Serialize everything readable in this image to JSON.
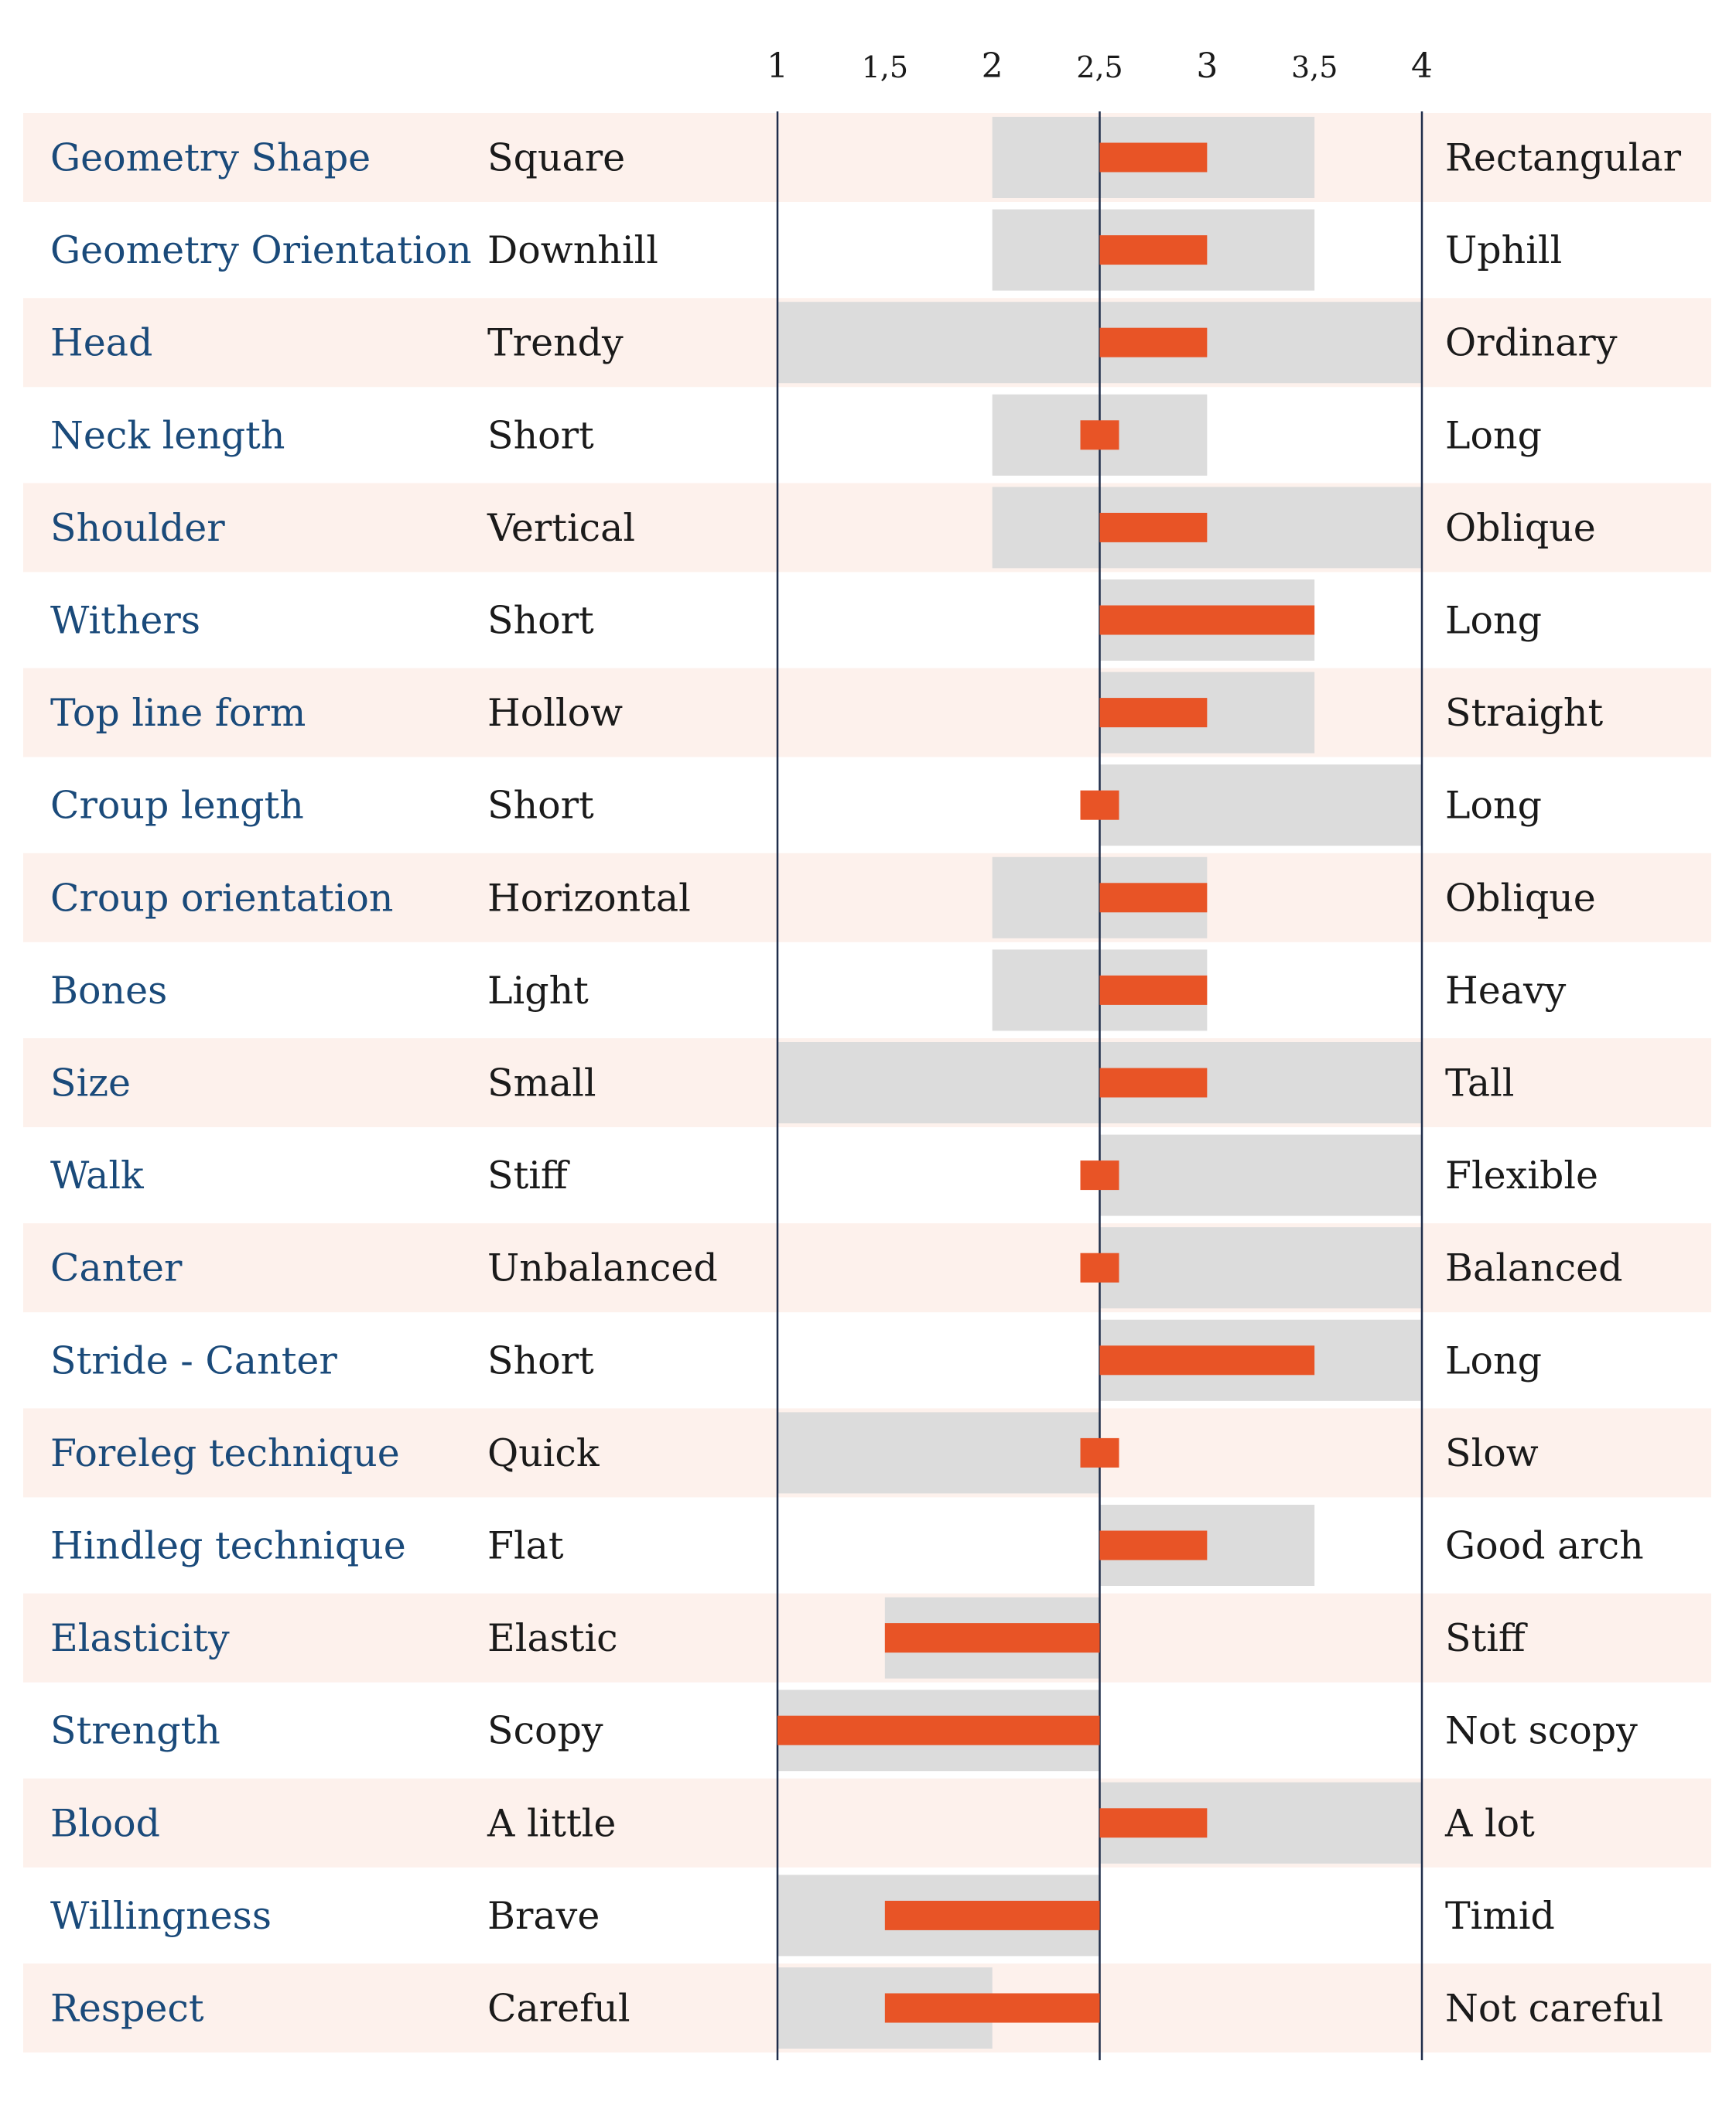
{
  "colors": {
    "row_band": "#fdf1ec",
    "range_bar": "#dcdcdc",
    "value_bar": "#e85426",
    "trait_text": "#1a4a7a",
    "pole_text": "#1a1a1a",
    "axis_line": "#1f2d4a"
  },
  "chart_data": {
    "type": "bar",
    "orientation": "horizontal",
    "baseline": 2.5,
    "xlim": [
      1,
      4
    ],
    "x_ticks": [
      1,
      1.5,
      2,
      2.5,
      3,
      3.5,
      4
    ],
    "x_tick_labels": [
      "1",
      "1,5",
      "2",
      "2,5",
      "3",
      "3,5",
      "4"
    ],
    "rows": [
      {
        "trait": "Geometry Shape",
        "low": "Square",
        "high": "Rectangular",
        "value": 3,
        "range": [
          2,
          3.5
        ]
      },
      {
        "trait": "Geometry Orientation",
        "low": "Downhill",
        "high": "Uphill",
        "value": 3,
        "range": [
          2,
          3.5
        ]
      },
      {
        "trait": "Head",
        "low": "Trendy",
        "high": "Ordinary",
        "value": 3,
        "range": [
          1,
          4
        ]
      },
      {
        "trait": "Neck length",
        "low": "Short",
        "high": "Long",
        "value": 2.5,
        "range": [
          2,
          3
        ]
      },
      {
        "trait": "Shoulder",
        "low": "Vertical",
        "high": "Oblique",
        "value": 3,
        "range": [
          2,
          4
        ]
      },
      {
        "trait": "Withers",
        "low": "Short",
        "high": "Long",
        "value": 3.5,
        "range": [
          2.5,
          3.5
        ]
      },
      {
        "trait": "Top line form",
        "low": "Hollow",
        "high": "Straight",
        "value": 3,
        "range": [
          2.5,
          3.5
        ]
      },
      {
        "trait": "Croup length",
        "low": "Short",
        "high": "Long",
        "value": 2.5,
        "range": [
          2.5,
          4
        ]
      },
      {
        "trait": "Croup orientation",
        "low": "Horizontal",
        "high": "Oblique",
        "value": 3,
        "range": [
          2,
          3
        ]
      },
      {
        "trait": "Bones",
        "low": "Light",
        "high": "Heavy",
        "value": 3,
        "range": [
          2,
          3
        ]
      },
      {
        "trait": "Size",
        "low": "Small",
        "high": "Tall",
        "value": 3,
        "range": [
          1,
          4
        ]
      },
      {
        "trait": "Walk",
        "low": "Stiff",
        "high": "Flexible",
        "value": 2.5,
        "range": [
          2.5,
          4
        ]
      },
      {
        "trait": "Canter",
        "low": "Unbalanced",
        "high": "Balanced",
        "value": 2.5,
        "range": [
          2.5,
          4
        ]
      },
      {
        "trait": "Stride - Canter",
        "low": "Short",
        "high": "Long",
        "value": 3.5,
        "range": [
          2.5,
          4
        ]
      },
      {
        "trait": "Foreleg technique",
        "low": "Quick",
        "high": "Slow",
        "value": 2.5,
        "range": [
          1,
          2.5
        ]
      },
      {
        "trait": "Hindleg technique",
        "low": "Flat",
        "high": "Good arch",
        "value": 3,
        "range": [
          2.5,
          3.5
        ]
      },
      {
        "trait": "Elasticity",
        "low": "Elastic",
        "high": "Stiff",
        "value": 1.5,
        "range": [
          1.5,
          2.5
        ]
      },
      {
        "trait": "Strength",
        "low": "Scopy",
        "high": "Not scopy",
        "value": 1,
        "range": [
          1,
          2.5
        ]
      },
      {
        "trait": "Blood",
        "low": "A little",
        "high": "A lot",
        "value": 3,
        "range": [
          2.5,
          4
        ]
      },
      {
        "trait": "Willingness",
        "low": "Brave",
        "high": "Timid",
        "value": 1.5,
        "range": [
          1,
          2.5
        ]
      },
      {
        "trait": "Respect",
        "low": "Careful",
        "high": "Not careful",
        "value": 1.5,
        "range": [
          1,
          2
        ]
      }
    ]
  }
}
